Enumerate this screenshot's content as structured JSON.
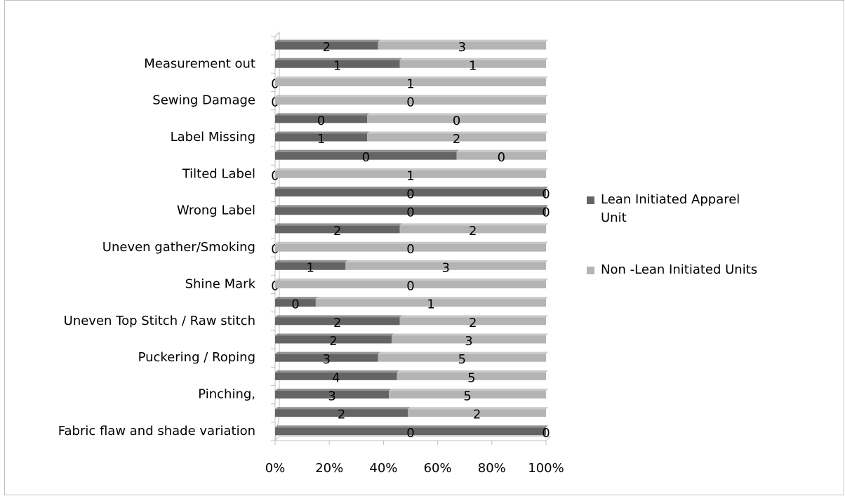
{
  "chart_data": {
    "type": "stacked_bar_horizontal_percent",
    "categories": [
      "Fabric flaw and shade variation",
      null,
      "Pinching,",
      null,
      "Puckering / Roping",
      null,
      "Uneven Top Stitch / Raw stitch",
      null,
      "Shine Mark",
      null,
      "Uneven gather/Smoking",
      null,
      "Wrong Label",
      null,
      "Tilted Label",
      null,
      "Label Missing",
      null,
      "Sewing Damage",
      null,
      "Measurement out",
      null
    ],
    "series": [
      {
        "name": "Lean Initiated Apparel Unit",
        "color": "#646464",
        "values": [
          100,
          49,
          42,
          45,
          38,
          43,
          46,
          15,
          0,
          26,
          0,
          46,
          100,
          100,
          0,
          67,
          34,
          34,
          0,
          0,
          46,
          38
        ],
        "value_labels": [
          "0",
          "2",
          "3",
          "4",
          "3",
          "2",
          "2",
          "0",
          "0",
          "1",
          "0",
          "2",
          "0",
          "0",
          "0",
          "0",
          "1",
          "0",
          "0",
          "0",
          "1",
          "2"
        ]
      },
      {
        "name": "Non -Lean Initiated Units",
        "color": "#b4b4b4",
        "values": [
          0,
          51,
          58,
          55,
          62,
          57,
          54,
          85,
          100,
          74,
          100,
          54,
          0,
          0,
          100,
          33,
          66,
          66,
          100,
          100,
          54,
          62
        ],
        "value_labels": [
          "0",
          "2",
          "5",
          "5",
          "5",
          "3",
          "2",
          "1",
          "0",
          "3",
          "0",
          "2",
          "0",
          "0",
          "1",
          "0",
          "2",
          "0",
          "0",
          "1",
          "1",
          "3"
        ]
      }
    ],
    "xlim": [
      0,
      100
    ],
    "xticks": [
      {
        "value": 0,
        "label": "0%"
      },
      {
        "value": 20,
        "label": "20%"
      },
      {
        "value": 40,
        "label": "40%"
      },
      {
        "value": 60,
        "label": "60%"
      },
      {
        "value": 80,
        "label": "80%"
      },
      {
        "value": 100,
        "label": "100%"
      }
    ],
    "legend": "right"
  }
}
